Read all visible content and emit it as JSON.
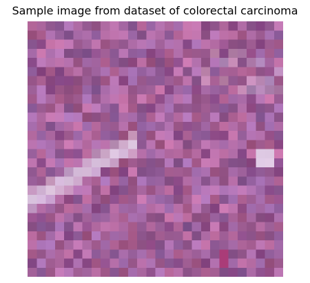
{
  "figure": {
    "title": "Sample image from dataset of colorectal carcinoma"
  },
  "image": {
    "subject": "histology tile",
    "base_color": "#a5649d",
    "light_stroma_color": "#eadcf0",
    "dark_nuclei_color": "#7d3c7a"
  }
}
